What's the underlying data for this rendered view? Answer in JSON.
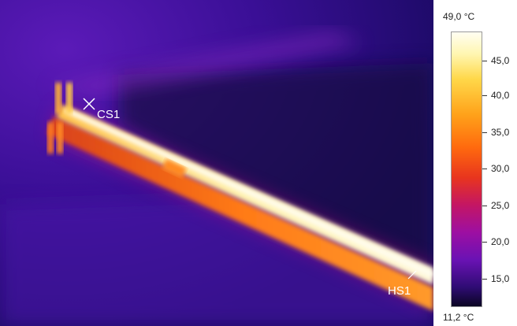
{
  "thermal_image": {
    "markers": [
      {
        "id": "cold_spot",
        "label": "CS1"
      },
      {
        "id": "hot_spot",
        "label": "HS1"
      }
    ]
  },
  "scale": {
    "max_label": "49,0 °C",
    "min_label": "11,2 °C",
    "ticks": [
      "45,0",
      "40,0",
      "35,0",
      "30,0",
      "25,0",
      "20,0",
      "15,0"
    ]
  },
  "colors": {
    "palette": "iron",
    "background_dark": "#1a0a5c",
    "hot": "#fff6c8",
    "warm": "#ff9a20"
  }
}
